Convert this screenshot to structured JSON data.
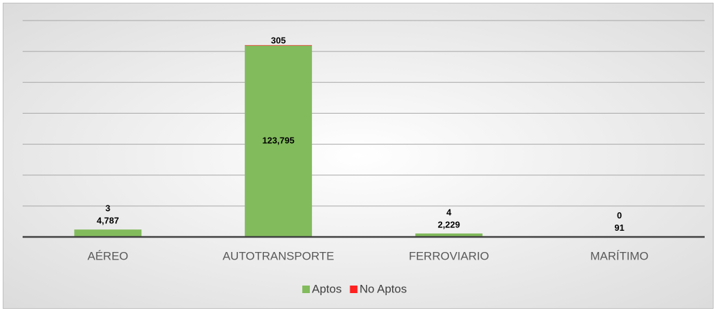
{
  "chart_data": {
    "type": "stacked_bar",
    "categories": [
      "AÉREO",
      "AUTOTRANSPORTE",
      "FERROVIARIO",
      "MARÍTIMO"
    ],
    "series": [
      {
        "name": "Aptos",
        "color": "#82bb5c",
        "values": [
          4787,
          123795,
          2229,
          91
        ],
        "value_labels": [
          "4,787",
          "123,795",
          "2,229",
          "91"
        ]
      },
      {
        "name": "No Aptos",
        "color": "#ff2020",
        "values": [
          3,
          305,
          4,
          0
        ]
      }
    ],
    "ylim": [
      0,
      140000
    ],
    "yticks": [
      0,
      20000,
      40000,
      60000,
      80000,
      100000,
      120000,
      140000
    ],
    "grid": true
  }
}
